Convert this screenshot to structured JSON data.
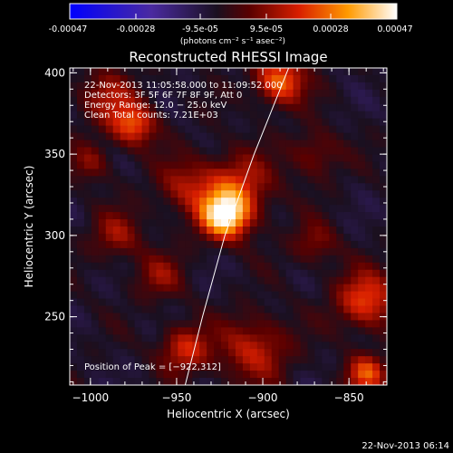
{
  "chart_data": {
    "type": "heatmap",
    "title": "Reconstructed RHESSI Image",
    "xlabel": "Heliocentric X (arcsec)",
    "ylabel": "Heliocentric Y (arcsec)",
    "xlim": [
      -1012,
      -828
    ],
    "ylim": [
      208,
      403
    ],
    "x_ticks": [
      -1000,
      -950,
      -900,
      -850
    ],
    "x_tick_labels": [
      "−1000",
      "−950",
      "−900",
      "−850"
    ],
    "y_ticks": [
      250,
      300,
      350,
      400
    ],
    "y_tick_labels": [
      "250",
      "300",
      "350",
      "400"
    ],
    "colorbar": {
      "range": [
        -0.00047,
        0.00047
      ],
      "ticks": [
        -0.00047,
        -0.00028,
        -9.5e-05,
        9.5e-05,
        0.00028,
        0.00047
      ],
      "tick_labels": [
        "-0.00047",
        "-0.00028",
        "-9.5e-05",
        "9.5e-05",
        "0.00028",
        "0.00047"
      ],
      "units_label": "(photons cm⁻² s⁻¹ asec⁻²)"
    },
    "info_lines": [
      "22-Nov-2013 11:05:58.000 to 11:09:52.000",
      "Detectors: 3F 5F 6F 7F 8F 9F, Att 0",
      "Energy Range: 12.0 − 25.0 keV",
      "Clean     Total counts: 7.21E+03"
    ],
    "peak_label": "Position of Peak = [−922,312]",
    "peak": [
      -922,
      312
    ],
    "limb_curve": [
      [
        -945,
        208
      ],
      [
        -935,
        250
      ],
      [
        -922,
        300
      ],
      [
        -905,
        350
      ],
      [
        -885,
        403
      ]
    ],
    "sources": [
      {
        "x": -922,
        "y": 312,
        "amp": 1.0,
        "r": 10
      },
      {
        "x": -915,
        "y": 330,
        "amp": 0.5,
        "r": 14
      },
      {
        "x": -975,
        "y": 368,
        "amp": 0.6,
        "r": 9
      },
      {
        "x": -890,
        "y": 395,
        "amp": 0.7,
        "r": 10
      },
      {
        "x": -990,
        "y": 385,
        "amp": 0.35,
        "r": 12
      },
      {
        "x": -840,
        "y": 260,
        "amp": 0.6,
        "r": 12
      },
      {
        "x": -905,
        "y": 230,
        "amp": 0.45,
        "r": 14
      },
      {
        "x": -840,
        "y": 215,
        "amp": 0.6,
        "r": 8
      },
      {
        "x": -945,
        "y": 230,
        "amp": 0.5,
        "r": 10
      },
      {
        "x": -985,
        "y": 300,
        "amp": 0.35,
        "r": 10
      },
      {
        "x": -960,
        "y": 275,
        "amp": 0.3,
        "r": 10
      },
      {
        "x": -945,
        "y": 330,
        "amp": 0.35,
        "r": 12
      },
      {
        "x": -870,
        "y": 350,
        "amp": 0.3,
        "r": 10
      },
      {
        "x": -1000,
        "y": 345,
        "amp": 0.3,
        "r": 8
      },
      {
        "x": -870,
        "y": 295,
        "amp": 0.3,
        "r": 9
      }
    ]
  },
  "timestamp": "22-Nov-2013 06:14"
}
